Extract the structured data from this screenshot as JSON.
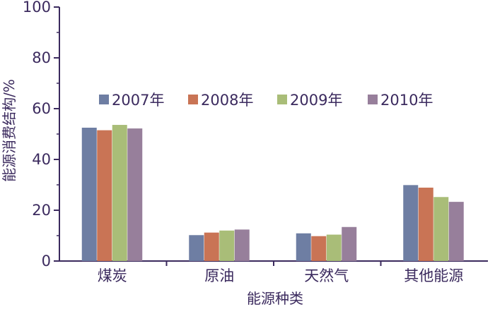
{
  "chart_data": {
    "type": "bar",
    "title": "",
    "xlabel": "能源种类",
    "ylabel": "能源消费结构/%",
    "ylim": [
      0,
      100
    ],
    "yticks": [
      0,
      20,
      40,
      60,
      80,
      100
    ],
    "grid": false,
    "legend_position": "top",
    "categories": [
      "煤炭",
      "原油",
      "天然气",
      "其他能源"
    ],
    "series": [
      {
        "name": "2007年",
        "color": "#6e7ea3",
        "values": [
          52.5,
          10.2,
          10.9,
          29.9
        ]
      },
      {
        "name": "2008年",
        "color": "#c97455",
        "values": [
          51.5,
          11.2,
          9.8,
          28.9
        ]
      },
      {
        "name": "2009年",
        "color": "#a9bd78",
        "values": [
          53.6,
          12.0,
          10.4,
          25.2
        ]
      },
      {
        "name": "2010年",
        "color": "#977f9b",
        "values": [
          52.2,
          12.4,
          13.4,
          23.3
        ]
      }
    ],
    "axis_color": "#3b2a5e"
  }
}
